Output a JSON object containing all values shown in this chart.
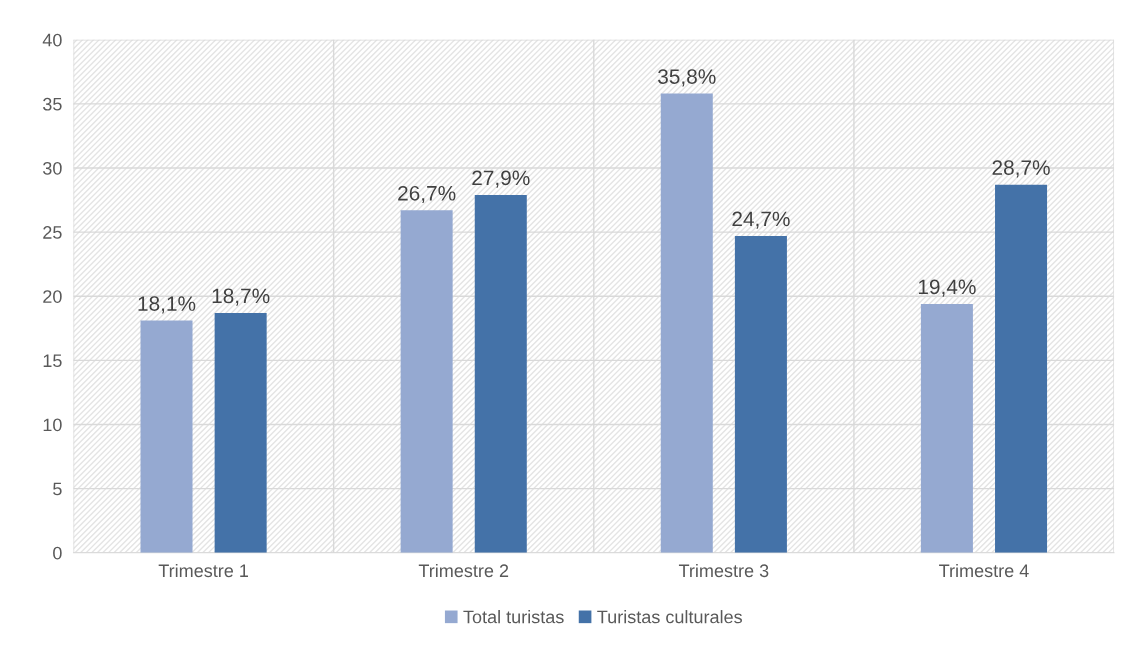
{
  "chart_data": {
    "type": "bar",
    "categories": [
      "Trimestre 1",
      "Trimestre 2",
      "Trimestre 3",
      "Trimestre 4"
    ],
    "series": [
      {
        "name": "Total turistas",
        "color": "#95a9d1",
        "values": [
          18.1,
          26.7,
          35.8,
          19.4
        ],
        "value_labels": [
          "18,1%",
          "26,7%",
          "35,8%",
          "19,4%"
        ]
      },
      {
        "name": "Turistas culturales",
        "color": "#4472a8",
        "values": [
          18.7,
          27.9,
          24.7,
          28.7
        ],
        "value_labels": [
          "18,7%",
          "27,9%",
          "24,7%",
          "28,7%"
        ]
      }
    ],
    "ylim": [
      0,
      40
    ],
    "yticks": [
      0,
      5,
      10,
      15,
      20,
      25,
      30,
      35,
      40
    ],
    "grid": true,
    "legend": "bottom"
  }
}
